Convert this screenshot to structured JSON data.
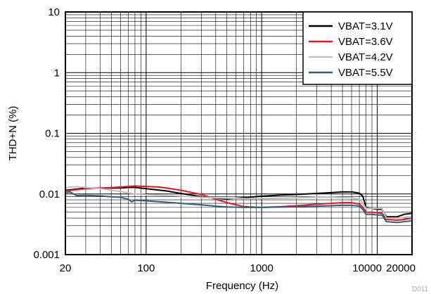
{
  "chart_data": {
    "type": "line",
    "xlabel": "Frequency (Hz)",
    "ylabel": "THD+N (%)",
    "x_scale": "log",
    "y_scale": "log",
    "xlim": [
      20,
      20000
    ],
    "ylim": [
      0.001,
      10
    ],
    "grid": true,
    "legend_position": "top-right",
    "watermark": "D011",
    "x_tick_labels": [
      {
        "value": 20,
        "label": "20"
      },
      {
        "value": 100,
        "label": "100"
      },
      {
        "value": 1000,
        "label": "1000"
      },
      {
        "value": 10000,
        "label": "10000"
      },
      {
        "value": 20000,
        "label": "20000"
      }
    ],
    "y_tick_labels": [
      {
        "value": 10,
        "label": "10"
      },
      {
        "value": 1,
        "label": "1"
      },
      {
        "value": 0.1,
        "label": "0.1"
      },
      {
        "value": 0.01,
        "label": "0.01"
      },
      {
        "value": 0.001,
        "label": "0.001"
      }
    ],
    "series": [
      {
        "name": "VBAT=3.1V",
        "color": "#000000",
        "points": [
          [
            20,
            0.0115
          ],
          [
            25,
            0.012
          ],
          [
            30,
            0.0125
          ],
          [
            40,
            0.0125
          ],
          [
            50,
            0.0125
          ],
          [
            60,
            0.0125
          ],
          [
            70,
            0.0128
          ],
          [
            80,
            0.0128
          ],
          [
            100,
            0.0122
          ],
          [
            150,
            0.0112
          ],
          [
            200,
            0.0102
          ],
          [
            300,
            0.009
          ],
          [
            400,
            0.0085
          ],
          [
            500,
            0.0083
          ],
          [
            700,
            0.0087
          ],
          [
            1000,
            0.0092
          ],
          [
            1500,
            0.0096
          ],
          [
            2000,
            0.0098
          ],
          [
            3000,
            0.0102
          ],
          [
            4000,
            0.0105
          ],
          [
            5000,
            0.0108
          ],
          [
            6000,
            0.0108
          ],
          [
            7000,
            0.0103
          ],
          [
            7500,
            0.0092
          ],
          [
            8000,
            0.006
          ],
          [
            9000,
            0.0058
          ],
          [
            10000,
            0.0056
          ],
          [
            11000,
            0.0056
          ],
          [
            12000,
            0.0042
          ],
          [
            15000,
            0.0042
          ],
          [
            17000,
            0.0046
          ],
          [
            20000,
            0.0048
          ]
        ]
      },
      {
        "name": "VBAT=3.6V",
        "color": "#e8141b",
        "points": [
          [
            20,
            0.0112
          ],
          [
            25,
            0.0118
          ],
          [
            30,
            0.0122
          ],
          [
            40,
            0.0125
          ],
          [
            50,
            0.0127
          ],
          [
            60,
            0.013
          ],
          [
            70,
            0.0133
          ],
          [
            80,
            0.0135
          ],
          [
            100,
            0.0133
          ],
          [
            130,
            0.013
          ],
          [
            150,
            0.0125
          ],
          [
            200,
            0.0115
          ],
          [
            300,
            0.0098
          ],
          [
            400,
            0.0082
          ],
          [
            500,
            0.0072
          ],
          [
            700,
            0.0062
          ],
          [
            1000,
            0.006
          ],
          [
            1500,
            0.0062
          ],
          [
            2000,
            0.0064
          ],
          [
            3000,
            0.0068
          ],
          [
            4000,
            0.007
          ],
          [
            5000,
            0.0072
          ],
          [
            6000,
            0.0072
          ],
          [
            7000,
            0.0068
          ],
          [
            7500,
            0.006
          ],
          [
            8000,
            0.005
          ],
          [
            9000,
            0.005
          ],
          [
            10000,
            0.0049
          ],
          [
            11000,
            0.0048
          ],
          [
            12000,
            0.0038
          ],
          [
            15000,
            0.0037
          ],
          [
            17000,
            0.0038
          ],
          [
            20000,
            0.004
          ]
        ]
      },
      {
        "name": "VBAT=4.2V",
        "color": "#c0c0c0",
        "points": [
          [
            20,
            0.0128
          ],
          [
            25,
            0.0132
          ],
          [
            30,
            0.0128
          ],
          [
            40,
            0.0122
          ],
          [
            50,
            0.0115
          ],
          [
            60,
            0.011
          ],
          [
            70,
            0.0104
          ],
          [
            80,
            0.01
          ],
          [
            100,
            0.0097
          ],
          [
            150,
            0.0094
          ],
          [
            200,
            0.0092
          ],
          [
            300,
            0.0088
          ],
          [
            400,
            0.0086
          ],
          [
            500,
            0.0085
          ],
          [
            700,
            0.0084
          ],
          [
            1000,
            0.0084
          ],
          [
            1500,
            0.0085
          ],
          [
            2000,
            0.0086
          ],
          [
            3000,
            0.0088
          ],
          [
            4000,
            0.0088
          ],
          [
            5000,
            0.0087
          ],
          [
            6000,
            0.0086
          ],
          [
            7000,
            0.0082
          ],
          [
            7500,
            0.007
          ],
          [
            8000,
            0.0058
          ],
          [
            9000,
            0.0058
          ],
          [
            10000,
            0.0058
          ],
          [
            11000,
            0.0058
          ],
          [
            12000,
            0.004
          ],
          [
            15000,
            0.004
          ],
          [
            17000,
            0.0041
          ],
          [
            20000,
            0.0043
          ]
        ]
      },
      {
        "name": "VBAT=5.5V",
        "color": "#2e5f80",
        "points": [
          [
            20,
            0.0105
          ],
          [
            22,
            0.0108
          ],
          [
            25,
            0.0094
          ],
          [
            30,
            0.0095
          ],
          [
            40,
            0.0093
          ],
          [
            50,
            0.009
          ],
          [
            60,
            0.0088
          ],
          [
            70,
            0.0082
          ],
          [
            75,
            0.0074
          ],
          [
            80,
            0.0079
          ],
          [
            100,
            0.0077
          ],
          [
            150,
            0.0073
          ],
          [
            200,
            0.007
          ],
          [
            300,
            0.0066
          ],
          [
            400,
            0.0063
          ],
          [
            500,
            0.0061
          ],
          [
            700,
            0.006
          ],
          [
            1000,
            0.006
          ],
          [
            1500,
            0.0061
          ],
          [
            2000,
            0.0062
          ],
          [
            3000,
            0.0063
          ],
          [
            4000,
            0.0064
          ],
          [
            5000,
            0.0065
          ],
          [
            6000,
            0.0065
          ],
          [
            7000,
            0.0063
          ],
          [
            7500,
            0.0056
          ],
          [
            8000,
            0.0046
          ],
          [
            9000,
            0.0046
          ],
          [
            10000,
            0.0045
          ],
          [
            11000,
            0.0045
          ],
          [
            12000,
            0.0035
          ],
          [
            15000,
            0.0034
          ],
          [
            17000,
            0.0035
          ],
          [
            20000,
            0.0036
          ]
        ]
      }
    ]
  }
}
